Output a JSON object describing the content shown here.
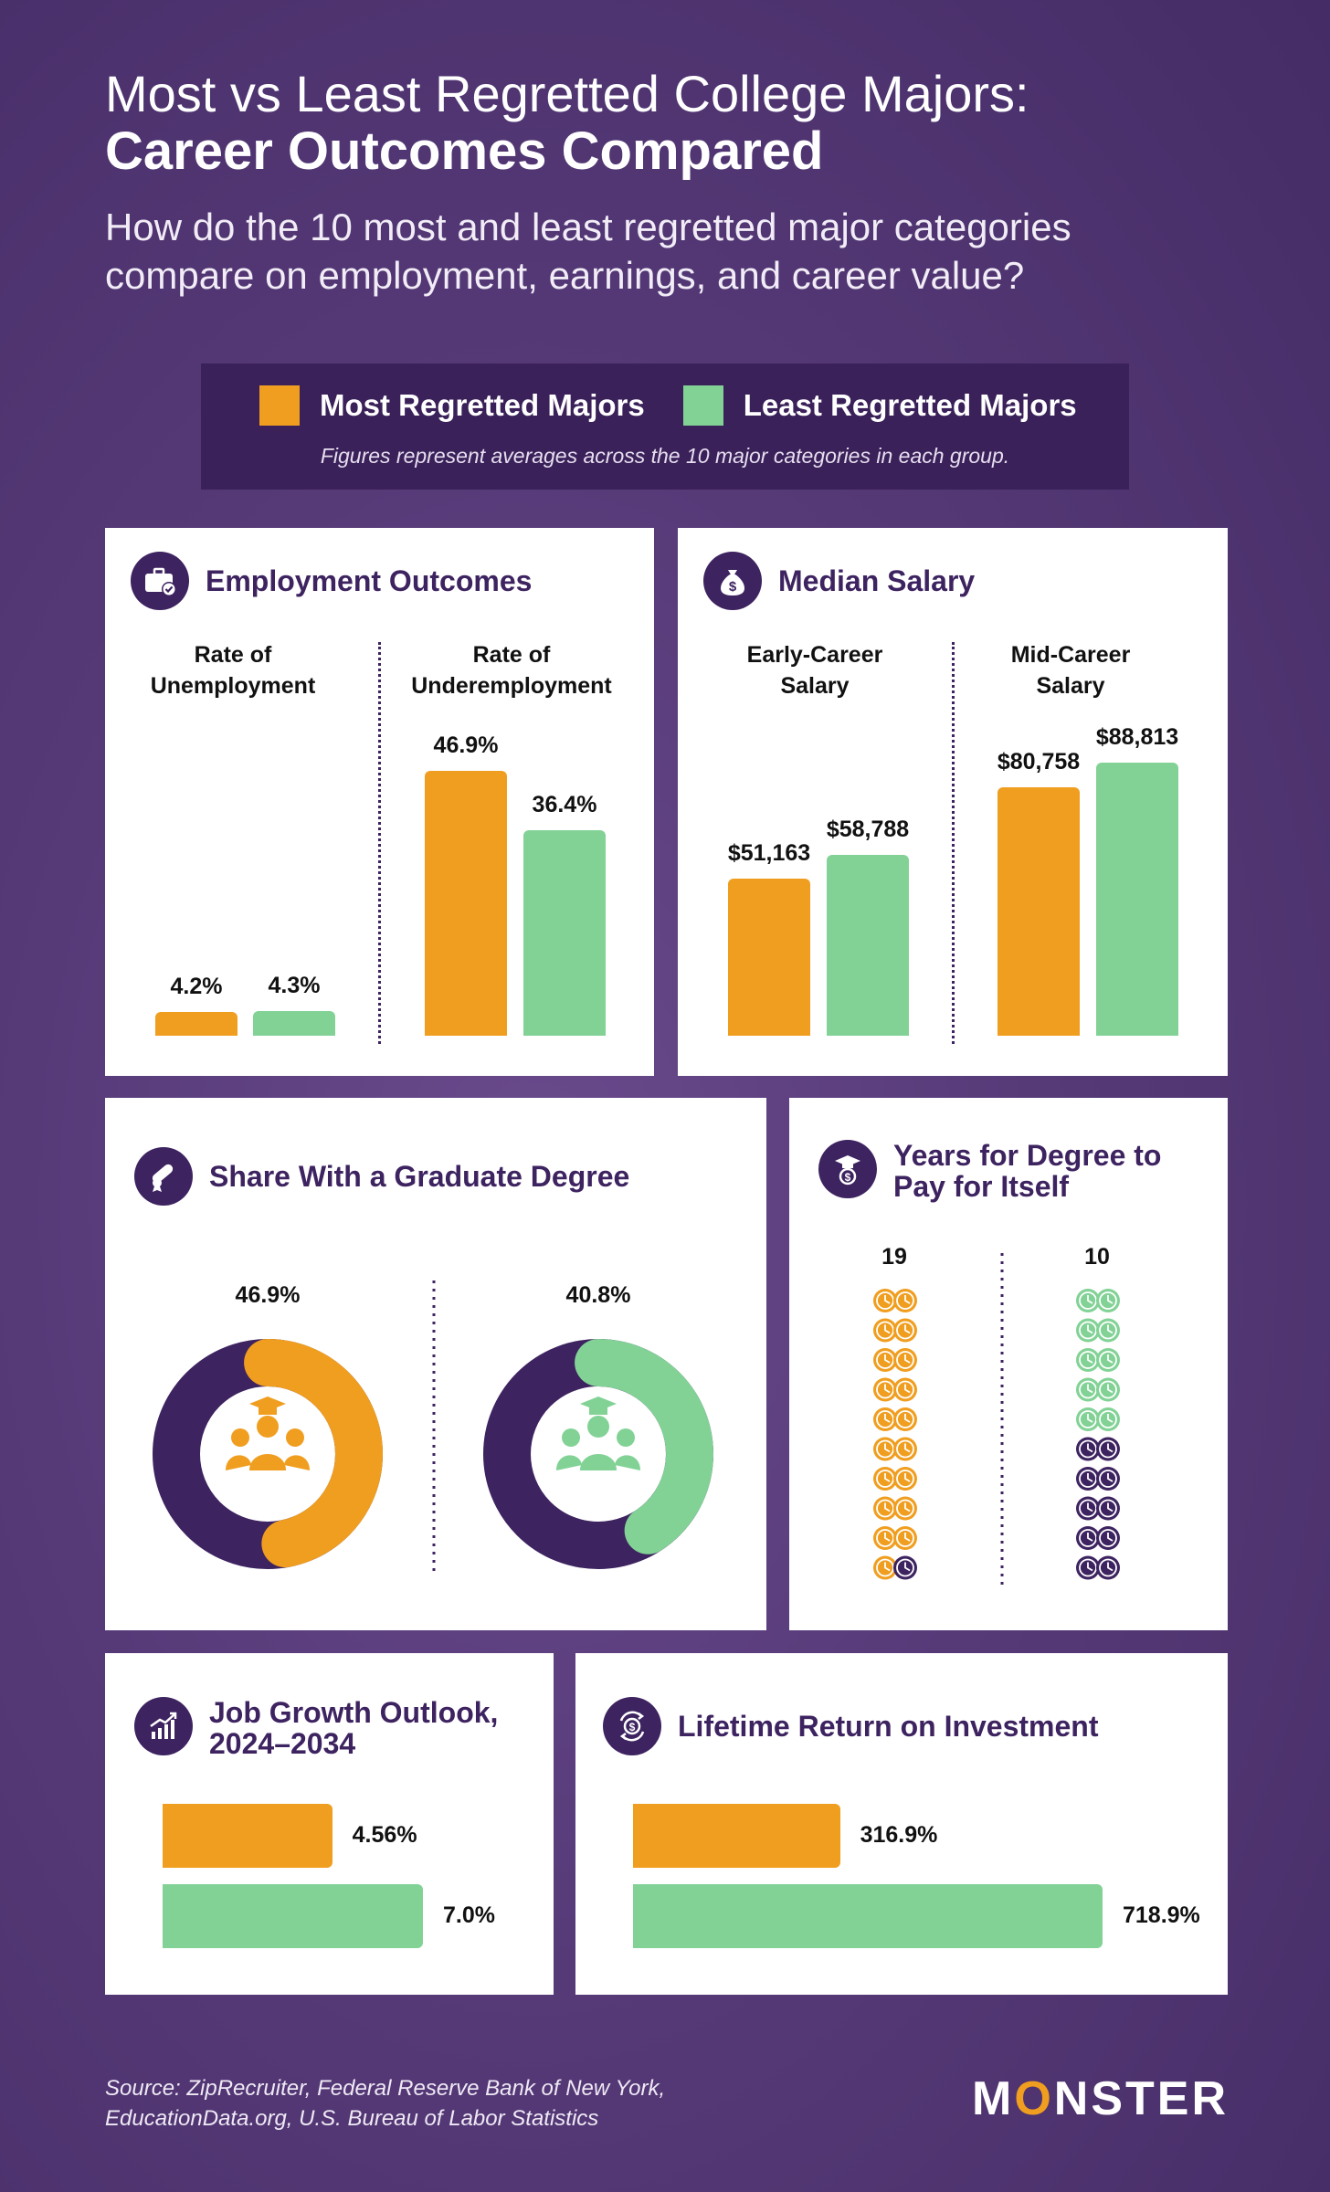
{
  "header": {
    "title_line1": "Most vs Least Regretted College Majors:",
    "title_line2": "Career Outcomes Compared",
    "subtitle": "How do the 10 most and least regretted major categories compare on employment, earnings, and career value?"
  },
  "legend": {
    "most_label": "Most Regretted Majors",
    "least_label": "Least Regretted Majors",
    "note": "Figures represent averages across the 10 major categories in each group."
  },
  "colors": {
    "most": "#f09e1f",
    "least": "#82d296",
    "dark": "#3d2360"
  },
  "employment": {
    "title": "Employment Outcomes",
    "icon": "briefcase-check-icon",
    "unemployment_label": "Rate of Unemployment",
    "underemployment_label": "Rate of Underemployment"
  },
  "salary": {
    "title": "Median Salary",
    "icon": "money-bag-icon",
    "early_label": "Early-Career Salary",
    "mid_label": "Mid-Career Salary"
  },
  "graduate": {
    "title": "Share With a Graduate Degree",
    "icon": "diploma-icon"
  },
  "payback": {
    "title": "Years for Degree to Pay for Itself",
    "icon": "graduation-dollar-icon"
  },
  "job_growth": {
    "title": "Job Growth Outlook, 2024–2034",
    "icon": "growth-chart-icon"
  },
  "roi": {
    "title": "Lifetime Return on Investment",
    "icon": "dollar-cycle-icon"
  },
  "footer": {
    "source": "Source: ZipRecruiter, Federal Reserve Bank of New York, EducationData.org, U.S. Bureau of Labor Statistics",
    "logo": "MONSTER"
  },
  "chart_data": [
    {
      "type": "bar",
      "title": "Employment Outcomes",
      "categories": [
        "Rate of Unemployment",
        "Rate of Underemployment"
      ],
      "series": [
        {
          "name": "Most Regretted Majors",
          "values": [
            4.2,
            46.9
          ],
          "labels": [
            "4.2%",
            "46.9%"
          ]
        },
        {
          "name": "Least Regretted Majors",
          "values": [
            4.3,
            36.4
          ],
          "labels": [
            "4.3%",
            "36.4%"
          ]
        }
      ]
    },
    {
      "type": "bar",
      "title": "Median Salary",
      "categories": [
        "Early-Career Salary",
        "Mid-Career Salary"
      ],
      "series": [
        {
          "name": "Most Regretted Majors",
          "values": [
            51163,
            80758
          ],
          "labels": [
            "$51,163",
            "$80,758"
          ]
        },
        {
          "name": "Least Regretted Majors",
          "values": [
            58788,
            88813
          ],
          "labels": [
            "$58,788",
            "$88,813"
          ]
        }
      ]
    },
    {
      "type": "pie",
      "title": "Share With a Graduate Degree",
      "series": [
        {
          "name": "Most Regretted Majors",
          "value": 46.9,
          "label": "46.9%"
        },
        {
          "name": "Least Regretted Majors",
          "value": 40.8,
          "label": "40.8%"
        }
      ]
    },
    {
      "type": "pictogram",
      "title": "Years for Degree to Pay for Itself",
      "total_icons": 20,
      "series": [
        {
          "name": "Most Regretted Majors",
          "value": 19,
          "label": "19"
        },
        {
          "name": "Least Regretted Majors",
          "value": 10,
          "label": "10"
        }
      ]
    },
    {
      "type": "bar",
      "orientation": "horizontal",
      "title": "Job Growth Outlook, 2024–2034",
      "series": [
        {
          "name": "Most Regretted Majors",
          "value": 4.56,
          "label": "4.56%"
        },
        {
          "name": "Least Regretted Majors",
          "value": 7.0,
          "label": "7.0%"
        }
      ]
    },
    {
      "type": "bar",
      "orientation": "horizontal",
      "title": "Lifetime Return on Investment",
      "series": [
        {
          "name": "Most Regretted Majors",
          "value": 316.9,
          "label": "316.9%"
        },
        {
          "name": "Least Regretted Majors",
          "value": 718.9,
          "label": "718.9%"
        }
      ]
    }
  ]
}
